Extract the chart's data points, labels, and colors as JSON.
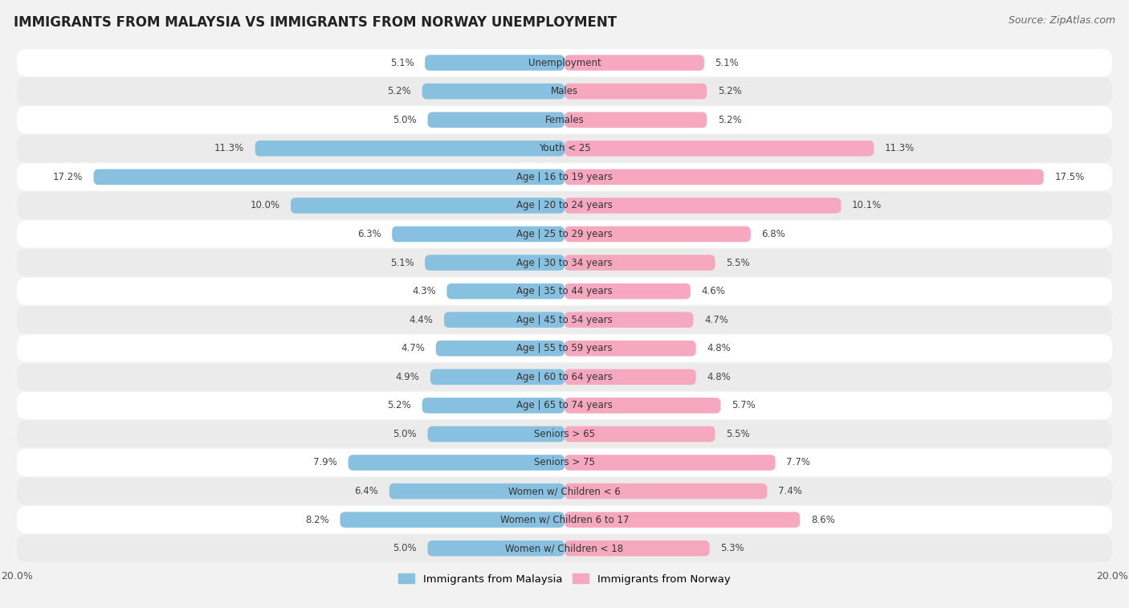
{
  "title": "IMMIGRANTS FROM MALAYSIA VS IMMIGRANTS FROM NORWAY UNEMPLOYMENT",
  "source": "Source: ZipAtlas.com",
  "categories": [
    "Unemployment",
    "Males",
    "Females",
    "Youth < 25",
    "Age | 16 to 19 years",
    "Age | 20 to 24 years",
    "Age | 25 to 29 years",
    "Age | 30 to 34 years",
    "Age | 35 to 44 years",
    "Age | 45 to 54 years",
    "Age | 55 to 59 years",
    "Age | 60 to 64 years",
    "Age | 65 to 74 years",
    "Seniors > 65",
    "Seniors > 75",
    "Women w/ Children < 6",
    "Women w/ Children 6 to 17",
    "Women w/ Children < 18"
  ],
  "malaysia_values": [
    5.1,
    5.2,
    5.0,
    11.3,
    17.2,
    10.0,
    6.3,
    5.1,
    4.3,
    4.4,
    4.7,
    4.9,
    5.2,
    5.0,
    7.9,
    6.4,
    8.2,
    5.0
  ],
  "norway_values": [
    5.1,
    5.2,
    5.2,
    11.3,
    17.5,
    10.1,
    6.8,
    5.5,
    4.6,
    4.7,
    4.8,
    4.8,
    5.7,
    5.5,
    7.7,
    7.4,
    8.6,
    5.3
  ],
  "malaysia_color": "#88c0e0",
  "norway_color": "#f5a8c0",
  "xlim": 20.0,
  "background_color": "#f2f2f2",
  "row_color_even": "#ffffff",
  "row_color_odd": "#ebebeb",
  "label_malaysia": "Immigrants from Malaysia",
  "label_norway": "Immigrants from Norway",
  "title_fontsize": 12,
  "source_fontsize": 9,
  "value_fontsize": 8.5,
  "category_fontsize": 8.5
}
